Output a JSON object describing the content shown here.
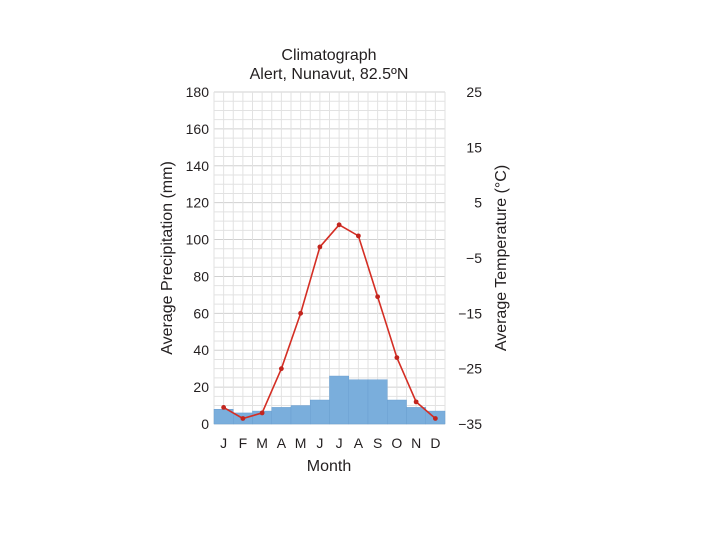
{
  "chart_data": {
    "type": "bar+line",
    "title": "Climatograph",
    "subtitle": "Alert, Nunavut, 82.5ºN",
    "xlabel": "Month",
    "ylabel_left": "Average Precipitation (mm)",
    "ylabel_right": "Average Temperature (°C)",
    "categories": [
      "J",
      "F",
      "M",
      "A",
      "M",
      "J",
      "J",
      "A",
      "S",
      "O",
      "N",
      "D"
    ],
    "left_axis": {
      "min": 0,
      "max": 180,
      "ticks": [
        "0",
        "20",
        "40",
        "60",
        "80",
        "100",
        "120",
        "140",
        "160",
        "180"
      ]
    },
    "right_axis": {
      "min": -35,
      "max": 25,
      "ticks": [
        "−35",
        "−25",
        "−15",
        "−5",
        "5",
        "15",
        "25"
      ]
    },
    "grid": true,
    "series": [
      {
        "name": "Average Precipitation",
        "kind": "bar",
        "axis": "left",
        "color": "#7aaedc",
        "values": [
          8,
          6,
          7,
          9,
          10,
          13,
          26,
          24,
          24,
          13,
          9,
          7
        ]
      },
      {
        "name": "Average Temperature",
        "kind": "line",
        "axis": "right",
        "color": "#d42e24",
        "values": [
          -32,
          -34,
          -33,
          -25,
          -15,
          -3,
          1,
          -1,
          -12,
          -23,
          -31,
          -34
        ]
      }
    ]
  }
}
